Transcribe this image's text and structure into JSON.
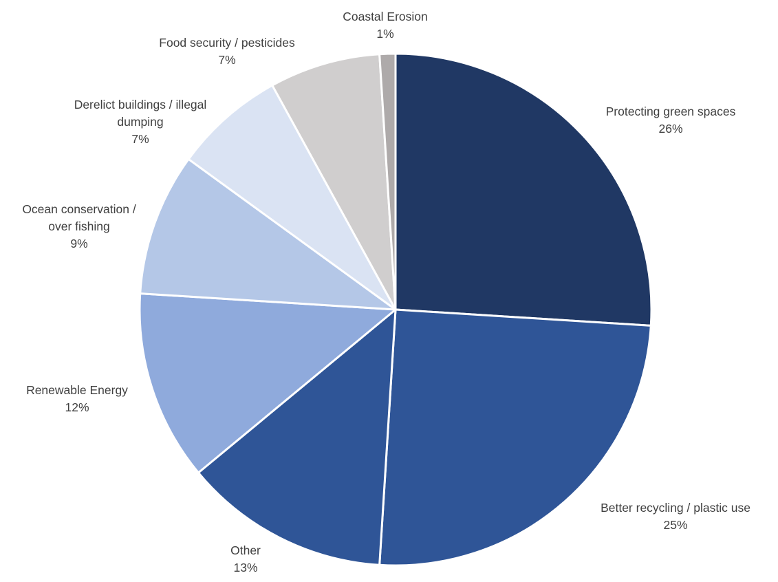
{
  "chart_data": {
    "type": "pie",
    "start_angle_deg": 0,
    "direction": "clockwise",
    "slices": [
      {
        "label": "Protecting green spaces",
        "value": 26,
        "display": "26%",
        "color": "#203864"
      },
      {
        "label": "Better recycling / plastic use",
        "value": 25,
        "display": "25%",
        "color": "#2F5597"
      },
      {
        "label": "Other",
        "value": 13,
        "display": "13%",
        "color": "#2F5597"
      },
      {
        "label": "Renewable Energy",
        "value": 12,
        "display": "12%",
        "color": "#8FAADC"
      },
      {
        "label": "Ocean conservation / over fishing",
        "value": 9,
        "display": "9%",
        "color": "#B4C7E7"
      },
      {
        "label": "Derelict buildings / illegal dumping",
        "value": 7,
        "display": "7%",
        "color": "#DAE3F3"
      },
      {
        "label": "Food security / pesticides",
        "value": 7,
        "display": "7%",
        "color": "#D0CECE"
      },
      {
        "label": "Coastal Erosion",
        "value": 1,
        "display": "1%",
        "color": "#AEAAAA"
      }
    ],
    "label_lines": [
      [
        "Protecting green spaces",
        "26%"
      ],
      [
        "Better recycling / plastic use",
        "25%"
      ],
      [
        "Other",
        "13%"
      ],
      [
        "Renewable Energy",
        "12%"
      ],
      [
        "Ocean conservation /",
        "over fishing",
        "9%"
      ],
      [
        "Derelict buildings / illegal",
        "dumping",
        "7%"
      ],
      [
        "Food security / pesticides",
        "7%"
      ],
      [
        "Coastal Erosion",
        "1%"
      ]
    ]
  }
}
